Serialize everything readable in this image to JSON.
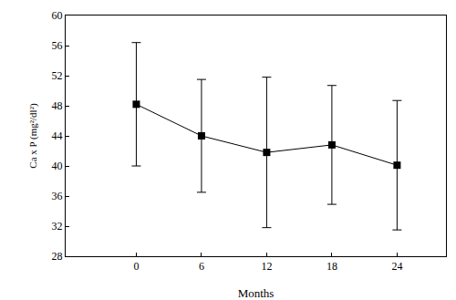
{
  "chart_data": {
    "type": "line",
    "x_label": "Months",
    "y_label": "Ca x P (mg²/dl²)",
    "x": [
      0,
      6,
      12,
      18,
      24
    ],
    "values": [
      48.2,
      44.0,
      41.8,
      42.8,
      40.1
    ],
    "error": [
      8.2,
      7.5,
      10.0,
      7.9,
      8.6
    ],
    "color": "#000000",
    "marker": "square",
    "line_style": "solid",
    "xlim": [
      -6.5,
      28.5
    ],
    "xticks": [
      0,
      6,
      12,
      18,
      24
    ],
    "ylim": [
      28,
      60
    ],
    "yticks": [
      28,
      32,
      36,
      40,
      44,
      48,
      52,
      56,
      60
    ],
    "grid": false
  }
}
